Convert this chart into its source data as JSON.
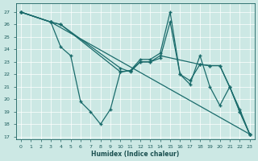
{
  "xlabel": "Humidex (Indice chaleur)",
  "bg_color": "#cce8e4",
  "line_color": "#1a6b6b",
  "grid_color": "#ffffff",
  "xlim": [
    -0.5,
    23.5
  ],
  "ylim": [
    16.8,
    27.7
  ],
  "yticks": [
    17,
    18,
    19,
    20,
    21,
    22,
    23,
    24,
    25,
    26,
    27
  ],
  "xticks": [
    0,
    1,
    2,
    3,
    4,
    5,
    6,
    7,
    8,
    9,
    10,
    11,
    12,
    13,
    14,
    15,
    16,
    17,
    18,
    19,
    20,
    21,
    22,
    23
  ],
  "series": [
    {
      "x": [
        0,
        3,
        23
      ],
      "y": [
        27,
        26.2,
        17.2
      ]
    },
    {
      "x": [
        0,
        3,
        4,
        10,
        11,
        12,
        13,
        14,
        18,
        19,
        20,
        22,
        23
      ],
      "y": [
        27,
        26.2,
        26.0,
        22.5,
        22.2,
        23.0,
        23.0,
        23.5,
        22.8,
        22.7,
        22.7,
        19.2,
        17.2
      ]
    },
    {
      "x": [
        0,
        3,
        4,
        5,
        6,
        7,
        8,
        9,
        10,
        11,
        12,
        13,
        14,
        15,
        16,
        17,
        18,
        19,
        20,
        21,
        22,
        23
      ],
      "y": [
        27,
        26.2,
        24.2,
        23.5,
        19.8,
        19.0,
        18.0,
        19.2,
        22.2,
        22.3,
        23.0,
        23.0,
        23.3,
        26.2,
        22.0,
        21.5,
        22.8,
        22.7,
        22.7,
        21.0,
        19.0,
        17.2
      ]
    },
    {
      "x": [
        0,
        3,
        4,
        10,
        11,
        12,
        13,
        14,
        15,
        16,
        17,
        18,
        19,
        20,
        21,
        22,
        23
      ],
      "y": [
        27,
        26.2,
        26.0,
        22.2,
        22.3,
        23.2,
        23.2,
        23.7,
        27.0,
        22.0,
        21.2,
        23.5,
        21.0,
        19.5,
        21.0,
        19.0,
        17.2
      ]
    }
  ]
}
